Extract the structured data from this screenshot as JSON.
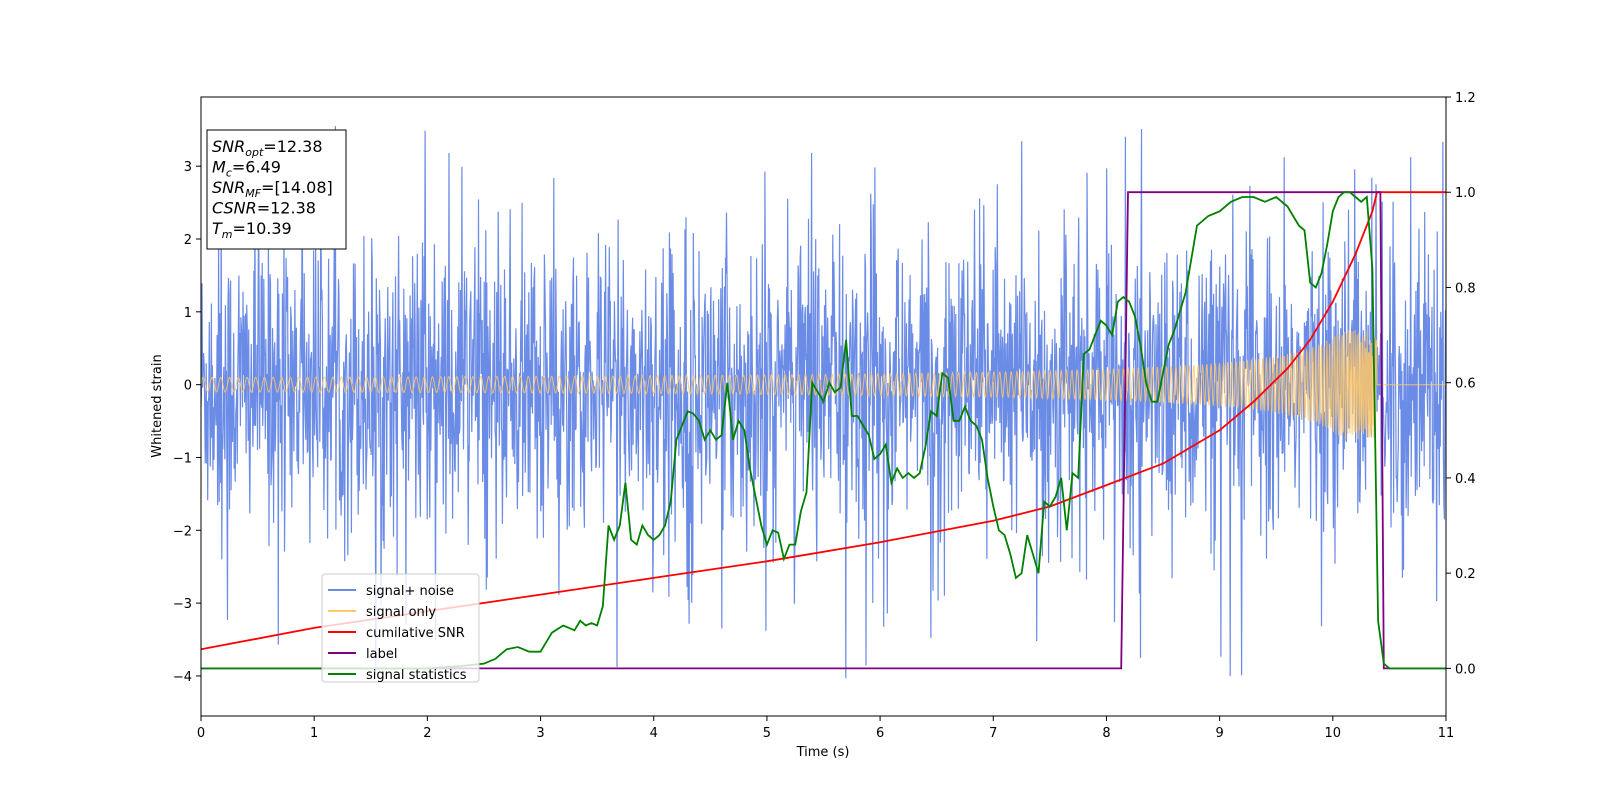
{
  "chart_data": {
    "type": "line",
    "title": "",
    "xlabel": "Time (s)",
    "ylabel": "Whitened strain",
    "y2label": "",
    "xlim": [
      0,
      11
    ],
    "ylim": [
      -4.55,
      3.95
    ],
    "y2lim": [
      -0.1,
      1.2
    ],
    "x_ticks": [
      0,
      1,
      2,
      3,
      4,
      5,
      6,
      7,
      8,
      9,
      10,
      11
    ],
    "y_ticks": [
      3,
      2,
      1,
      0,
      -1,
      -2,
      -3,
      -4
    ],
    "y_tick_labels": [
      "3",
      "2",
      "1",
      "0",
      "−1",
      "−2",
      "−3",
      "−4"
    ],
    "y2_ticks": [
      1.2,
      1.0,
      0.8,
      0.6,
      0.4,
      0.2,
      0.0
    ],
    "y2_tick_labels": [
      "1.2",
      "1.0",
      "0.8",
      "0.6",
      "0.4",
      "0.2",
      "0.0"
    ],
    "grid": false,
    "legend_position": "lower-left",
    "info_box": [
      {
        "base": "SNR",
        "sub": "opt",
        "rest": "=12.38"
      },
      {
        "base": "M",
        "sub": "c",
        "rest": "=6.49"
      },
      {
        "base": "SNR",
        "sub": "MF",
        "rest": "=[14.08]"
      },
      {
        "base": "CSNR",
        "sub": "",
        "rest": "=12.38"
      },
      {
        "base": "T",
        "sub": "m",
        "rest": "=10.39"
      }
    ],
    "series": [
      {
        "name": "signal+ noise",
        "color": "#6a8be6",
        "axis": "left",
        "kind": "noise",
        "params": {
          "sigma": 1.0,
          "spikes_to": [
            3.55,
            -4.15
          ]
        }
      },
      {
        "name": "signal only",
        "color": "#ffc766",
        "axis": "left",
        "kind": "chirp",
        "params": {
          "merger_time": 10.39,
          "amp_end": 0.75,
          "amp_start": 0.05
        }
      },
      {
        "name": "cumilative SNR",
        "color": "#ff0000",
        "axis": "right",
        "x": [
          0,
          1,
          2,
          3,
          4,
          5,
          6,
          7,
          7.5,
          8,
          8.5,
          9,
          9.3,
          9.6,
          9.8,
          10.0,
          10.2,
          10.35,
          10.39,
          11.0
        ],
        "y": [
          0.04,
          0.085,
          0.12,
          0.155,
          0.19,
          0.225,
          0.265,
          0.31,
          0.34,
          0.385,
          0.43,
          0.5,
          0.56,
          0.63,
          0.69,
          0.77,
          0.87,
          0.96,
          1.0,
          1.0
        ]
      },
      {
        "name": "label",
        "color": "#800080",
        "axis": "right",
        "x": [
          0,
          8.13,
          8.19,
          10.42,
          10.45,
          11.0
        ],
        "y": [
          0,
          0,
          1,
          1,
          0,
          0
        ]
      },
      {
        "name": "signal statistics",
        "color": "#008000",
        "axis": "right",
        "x": [
          0,
          0.5,
          1.0,
          1.5,
          2.0,
          2.3,
          2.5,
          2.6,
          2.7,
          2.8,
          2.9,
          3.0,
          3.1,
          3.2,
          3.3,
          3.35,
          3.4,
          3.45,
          3.5,
          3.55,
          3.6,
          3.65,
          3.7,
          3.75,
          3.8,
          3.85,
          3.9,
          3.95,
          4.0,
          4.05,
          4.1,
          4.15,
          4.2,
          4.3,
          4.35,
          4.4,
          4.45,
          4.5,
          4.55,
          4.6,
          4.65,
          4.7,
          4.75,
          4.8,
          4.85,
          4.9,
          4.95,
          5.0,
          5.05,
          5.1,
          5.15,
          5.2,
          5.25,
          5.3,
          5.35,
          5.4,
          5.5,
          5.55,
          5.6,
          5.65,
          5.7,
          5.75,
          5.8,
          5.85,
          5.9,
          5.95,
          6.0,
          6.05,
          6.1,
          6.15,
          6.2,
          6.25,
          6.3,
          6.35,
          6.4,
          6.45,
          6.5,
          6.55,
          6.6,
          6.65,
          6.7,
          6.75,
          6.8,
          6.85,
          6.9,
          6.95,
          7.0,
          7.05,
          7.1,
          7.15,
          7.2,
          7.25,
          7.3,
          7.35,
          7.4,
          7.45,
          7.5,
          7.55,
          7.6,
          7.65,
          7.7,
          7.75,
          7.8,
          7.85,
          7.9,
          7.95,
          8.0,
          8.05,
          8.1,
          8.15,
          8.2,
          8.25,
          8.3,
          8.35,
          8.4,
          8.45,
          8.5,
          8.55,
          8.6,
          8.7,
          8.8,
          8.9,
          9.0,
          9.1,
          9.2,
          9.3,
          9.4,
          9.5,
          9.6,
          9.7,
          9.75,
          9.8,
          9.85,
          9.9,
          9.95,
          10.0,
          10.05,
          10.1,
          10.15,
          10.2,
          10.25,
          10.3,
          10.35,
          10.4,
          10.45,
          10.5,
          10.6,
          10.8,
          11.0
        ],
        "y": [
          0.0,
          0.0,
          0.0,
          0.0,
          0.0,
          0.005,
          0.01,
          0.02,
          0.04,
          0.045,
          0.035,
          0.035,
          0.075,
          0.09,
          0.08,
          0.1,
          0.09,
          0.095,
          0.09,
          0.13,
          0.3,
          0.27,
          0.3,
          0.39,
          0.27,
          0.26,
          0.3,
          0.28,
          0.27,
          0.28,
          0.3,
          0.35,
          0.48,
          0.54,
          0.535,
          0.52,
          0.48,
          0.5,
          0.48,
          0.49,
          0.6,
          0.48,
          0.52,
          0.5,
          0.42,
          0.36,
          0.3,
          0.26,
          0.29,
          0.285,
          0.23,
          0.26,
          0.26,
          0.33,
          0.37,
          0.6,
          0.56,
          0.6,
          0.58,
          0.59,
          0.69,
          0.53,
          0.53,
          0.51,
          0.49,
          0.44,
          0.45,
          0.47,
          0.39,
          0.42,
          0.4,
          0.41,
          0.4,
          0.41,
          0.465,
          0.54,
          0.53,
          0.62,
          0.61,
          0.52,
          0.52,
          0.55,
          0.52,
          0.51,
          0.48,
          0.4,
          0.34,
          0.29,
          0.28,
          0.24,
          0.19,
          0.2,
          0.28,
          0.24,
          0.2,
          0.35,
          0.34,
          0.36,
          0.4,
          0.29,
          0.41,
          0.4,
          0.66,
          0.67,
          0.7,
          0.73,
          0.72,
          0.7,
          0.77,
          0.78,
          0.77,
          0.74,
          0.68,
          0.6,
          0.56,
          0.56,
          0.62,
          0.68,
          0.71,
          0.79,
          0.93,
          0.95,
          0.96,
          0.98,
          0.99,
          0.99,
          0.98,
          0.99,
          0.97,
          0.93,
          0.92,
          0.81,
          0.8,
          0.83,
          0.89,
          0.96,
          0.99,
          1.0,
          1.0,
          0.99,
          0.98,
          0.99,
          0.84,
          0.1,
          0.01,
          0.0,
          0.0,
          0.0,
          0.0
        ]
      }
    ]
  }
}
